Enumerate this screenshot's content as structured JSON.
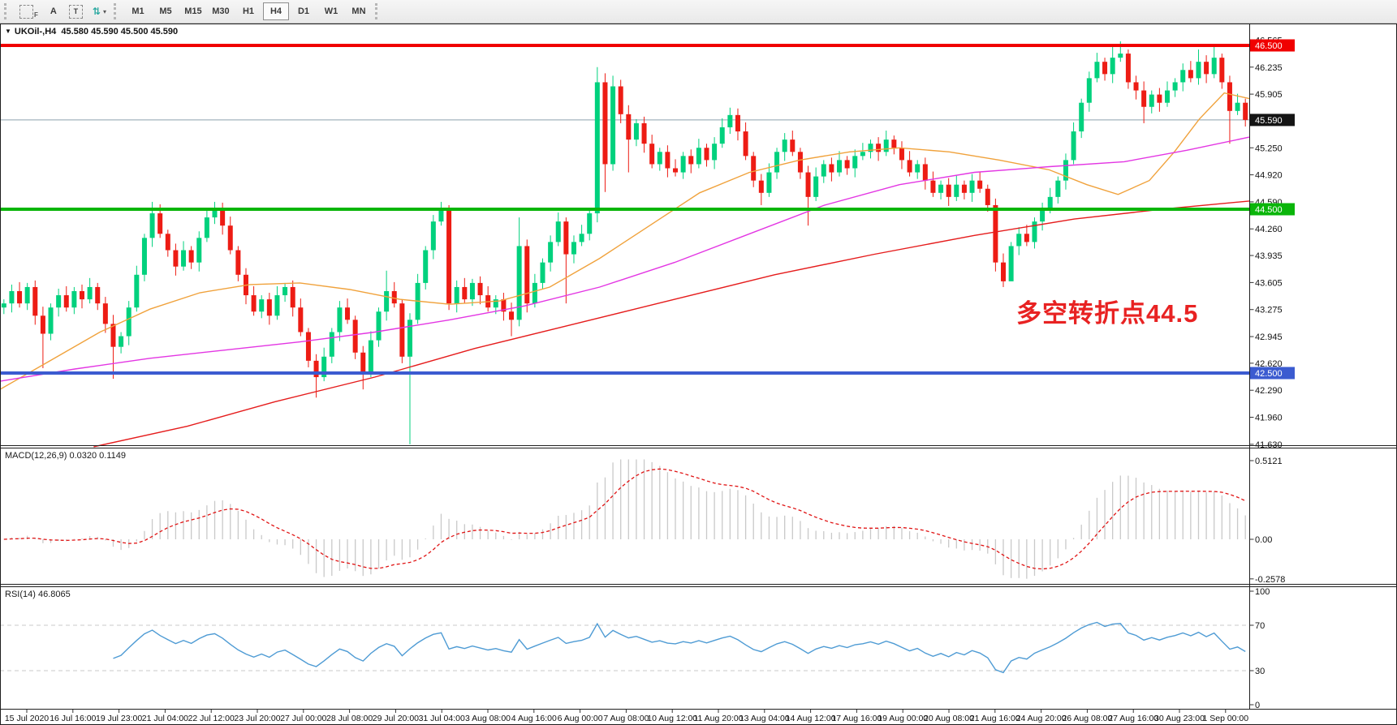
{
  "toolbar": {
    "tools": [
      {
        "id": "auto-mode-tool",
        "label": "F"
      },
      {
        "id": "text-annotation-tool",
        "label": "A"
      },
      {
        "id": "text-box-tool",
        "label": "T"
      },
      {
        "id": "cursor-style-tool",
        "label": "⇅"
      }
    ],
    "timeframes": [
      "M1",
      "M5",
      "M15",
      "M30",
      "H1",
      "H4",
      "D1",
      "W1",
      "MN"
    ],
    "active_timeframe": "H4"
  },
  "header": {
    "symbol_title": "UKOil-,H4",
    "ohlc": "45.580 45.590 45.500 45.590"
  },
  "annotation": {
    "text": "多空转折点44.5",
    "color": "#e82222"
  },
  "macd_panel": {
    "label": "MACD(12,26,9) 0.0320 0.1149"
  },
  "rsi_panel": {
    "label": "RSI(14) 46.8065"
  },
  "chart_data": {
    "type": "candlestick",
    "symbol": "UKOil-",
    "timeframe": "H4",
    "current_price": 45.59,
    "colors": {
      "bull": "#00d17d",
      "bear": "#ed1c14",
      "ma_fast": "#f0a23c",
      "ma_mid": "#e336e3",
      "ma_slow": "#e51c1c",
      "level_red": "#f00000",
      "level_green": "#0ab50a",
      "level_blue": "#3b5bd0",
      "current_line": "#8ea0ad",
      "macd_hist": "#c9c9c9",
      "macd_signal": "#e01414",
      "rsi_line": "#4e9bd4"
    },
    "first_open": 43.3,
    "closes": [
      43.35,
      43.5,
      43.35,
      43.55,
      43.2,
      42.98,
      43.3,
      43.45,
      43.3,
      43.5,
      43.4,
      43.55,
      43.35,
      43.1,
      42.82,
      42.95,
      43.3,
      43.7,
      44.15,
      44.45,
      44.2,
      44.0,
      43.8,
      44.0,
      43.85,
      44.15,
      44.4,
      44.5,
      44.3,
      44.0,
      43.7,
      43.45,
      43.25,
      43.4,
      43.2,
      43.45,
      43.55,
      43.3,
      43.0,
      42.65,
      42.45,
      42.7,
      43.0,
      43.3,
      43.15,
      42.75,
      42.5,
      42.9,
      43.25,
      43.5,
      43.35,
      42.7,
      43.15,
      43.6,
      44.0,
      44.35,
      44.5,
      43.35,
      43.55,
      43.4,
      43.6,
      43.45,
      43.3,
      43.4,
      43.25,
      43.15,
      44.05,
      43.35,
      43.6,
      43.85,
      44.1,
      44.35,
      43.95,
      44.1,
      44.2,
      44.45,
      46.05,
      45.05,
      46.0,
      45.66,
      45.35,
      45.55,
      45.3,
      45.05,
      45.2,
      45.0,
      44.95,
      45.15,
      45.05,
      45.25,
      45.1,
      45.3,
      45.5,
      45.65,
      45.45,
      45.15,
      44.85,
      44.7,
      44.95,
      45.2,
      45.35,
      45.2,
      44.95,
      44.65,
      44.9,
      45.05,
      44.95,
      45.1,
      45.0,
      45.15,
      45.2,
      45.3,
      45.2,
      45.35,
      45.25,
      45.1,
      44.95,
      45.05,
      44.85,
      44.7,
      44.8,
      44.65,
      44.8,
      44.7,
      44.85,
      44.75,
      44.55,
      43.85,
      43.62,
      44.05,
      44.2,
      44.1,
      44.35,
      44.5,
      44.65,
      44.85,
      45.1,
      45.45,
      45.8,
      46.1,
      46.3,
      46.15,
      46.35,
      46.4,
      46.05,
      45.95,
      45.75,
      45.9,
      45.8,
      45.95,
      46.05,
      46.2,
      46.1,
      46.3,
      46.15,
      46.35,
      46.05,
      45.7,
      45.8,
      45.59
    ],
    "wick_overrides": {
      "5": {
        "low": 42.56
      },
      "14": {
        "low": 42.43
      },
      "19": {
        "high": 44.59
      },
      "27": {
        "high": 44.59
      },
      "40": {
        "low": 42.2
      },
      "46": {
        "low": 42.3
      },
      "49": {
        "high": 43.75
      },
      "52": {
        "low": 41.63
      },
      "56": {
        "high": 44.59
      },
      "65": {
        "low": 42.95
      },
      "66": {
        "high": 44.4
      },
      "72": {
        "low": 43.35
      },
      "76": {
        "high": 46.235
      },
      "77": {
        "low": 44.71
      },
      "78": {
        "high": 46.13
      },
      "80": {
        "low": 44.95
      },
      "93": {
        "high": 45.74
      },
      "97": {
        "low": 44.55
      },
      "103": {
        "low": 44.3
      },
      "128": {
        "low": 43.55
      },
      "129": {
        "low": 43.7
      },
      "142": {
        "high": 46.5
      },
      "143": {
        "high": 46.55
      },
      "146": {
        "low": 45.55
      },
      "153": {
        "high": 46.45
      },
      "155": {
        "high": 46.52
      },
      "157": {
        "low": 45.3
      }
    },
    "levels": [
      {
        "price": 46.5,
        "label": "46.500",
        "color": "#f00000",
        "badge_bg": "#f00000",
        "width": 4
      },
      {
        "price": 45.59,
        "label": "45.590",
        "color": "#8ea0ad",
        "badge_bg": "#141414",
        "width": 1,
        "role": "current-price"
      },
      {
        "price": 44.5,
        "label": "44.500",
        "color": "#0ab50a",
        "badge_bg": "#0ab50a",
        "width": 4
      },
      {
        "price": 42.5,
        "label": "42.500",
        "color": "#3b5bd0",
        "badge_bg": "#3b5bd0",
        "width": 4
      }
    ],
    "moving_averages": [
      {
        "name": "ma-fast-orange",
        "color": "#f0a23c",
        "points": [
          [
            0,
            42.3
          ],
          [
            0.04,
            42.65
          ],
          [
            0.08,
            43.0
          ],
          [
            0.12,
            43.28
          ],
          [
            0.16,
            43.48
          ],
          [
            0.2,
            43.58
          ],
          [
            0.24,
            43.6
          ],
          [
            0.28,
            43.52
          ],
          [
            0.32,
            43.4
          ],
          [
            0.36,
            43.34
          ],
          [
            0.4,
            43.38
          ],
          [
            0.44,
            43.55
          ],
          [
            0.48,
            43.9
          ],
          [
            0.52,
            44.3
          ],
          [
            0.56,
            44.7
          ],
          [
            0.6,
            44.95
          ],
          [
            0.64,
            45.1
          ],
          [
            0.68,
            45.2
          ],
          [
            0.72,
            45.25
          ],
          [
            0.76,
            45.2
          ],
          [
            0.8,
            45.1
          ],
          [
            0.84,
            44.98
          ],
          [
            0.87,
            44.8
          ],
          [
            0.895,
            44.68
          ],
          [
            0.92,
            44.85
          ],
          [
            0.94,
            45.2
          ],
          [
            0.96,
            45.6
          ],
          [
            0.98,
            45.92
          ],
          [
            1.0,
            45.85
          ]
        ]
      },
      {
        "name": "ma-mid-magenta",
        "color": "#e336e3",
        "points": [
          [
            0,
            42.4
          ],
          [
            0.06,
            42.55
          ],
          [
            0.12,
            42.68
          ],
          [
            0.18,
            42.78
          ],
          [
            0.24,
            42.88
          ],
          [
            0.3,
            43.0
          ],
          [
            0.36,
            43.15
          ],
          [
            0.42,
            43.32
          ],
          [
            0.48,
            43.55
          ],
          [
            0.54,
            43.85
          ],
          [
            0.6,
            44.2
          ],
          [
            0.66,
            44.55
          ],
          [
            0.72,
            44.8
          ],
          [
            0.78,
            44.95
          ],
          [
            0.84,
            45.02
          ],
          [
            0.9,
            45.08
          ],
          [
            0.95,
            45.22
          ],
          [
            1.0,
            45.38
          ]
        ]
      },
      {
        "name": "ma-slow-red",
        "color": "#e51c1c",
        "points": [
          [
            0.075,
            41.6
          ],
          [
            0.15,
            41.85
          ],
          [
            0.22,
            42.15
          ],
          [
            0.3,
            42.45
          ],
          [
            0.38,
            42.8
          ],
          [
            0.46,
            43.1
          ],
          [
            0.54,
            43.4
          ],
          [
            0.62,
            43.7
          ],
          [
            0.7,
            43.95
          ],
          [
            0.78,
            44.18
          ],
          [
            0.86,
            44.38
          ],
          [
            0.93,
            44.5
          ],
          [
            1.0,
            44.6
          ]
        ]
      }
    ],
    "price_axis_ticks": [
      {
        "label": "46.565",
        "price": 46.565
      },
      {
        "label": "46.235",
        "price": 46.235
      },
      {
        "label": "45.905",
        "price": 45.905
      },
      {
        "label": "45.250",
        "price": 45.25
      },
      {
        "label": "44.920",
        "price": 44.92
      },
      {
        "label": "44.590",
        "price": 44.59
      },
      {
        "label": "44.260",
        "price": 44.26
      },
      {
        "label": "43.935",
        "price": 43.935
      },
      {
        "label": "43.605",
        "price": 43.605
      },
      {
        "label": "43.275",
        "price": 43.275
      },
      {
        "label": "42.945",
        "price": 42.945
      },
      {
        "label": "42.620",
        "price": 42.62
      },
      {
        "label": "42.290",
        "price": 42.29
      },
      {
        "label": "41.960",
        "price": 41.96
      },
      {
        "label": "41.630",
        "price": 41.63
      }
    ],
    "macd": {
      "fast": 12,
      "slow": 26,
      "signal_period": 9,
      "display_values": "0.0320 0.1149",
      "axis_ticks": [
        {
          "label": "0.5121",
          "value": 0.5121
        },
        {
          "label": "0.00",
          "value": 0
        },
        {
          "label": "-0.2578",
          "value": -0.2578
        }
      ]
    },
    "rsi": {
      "period": 14,
      "display_value": "46.8065",
      "dashed_levels": [
        70,
        30
      ],
      "axis_ticks": [
        {
          "label": "100",
          "value": 100
        },
        {
          "label": "70",
          "value": 70
        },
        {
          "label": "30",
          "value": 30
        },
        {
          "label": "0",
          "value": 0
        }
      ]
    },
    "x_labels": [
      "15 Jul 2020",
      "16 Jul 16:00",
      "19 Jul 23:00",
      "21 Jul 04:00",
      "22 Jul 12:00",
      "23 Jul 20:00",
      "27 Jul 00:00",
      "28 Jul 08:00",
      "29 Jul 20:00",
      "31 Jul 04:00",
      "3 Aug 08:00",
      "4 Aug 16:00",
      "6 Aug 00:00",
      "7 Aug 08:00",
      "10 Aug 12:00",
      "11 Aug 20:00",
      "13 Aug 04:00",
      "14 Aug 12:00",
      "17 Aug 16:00",
      "19 Aug 00:00",
      "20 Aug 08:00",
      "21 Aug 16:00",
      "24 Aug 20:00",
      "26 Aug 08:00",
      "27 Aug 16:00",
      "30 Aug 23:00",
      "1 Sep 00:00"
    ]
  }
}
